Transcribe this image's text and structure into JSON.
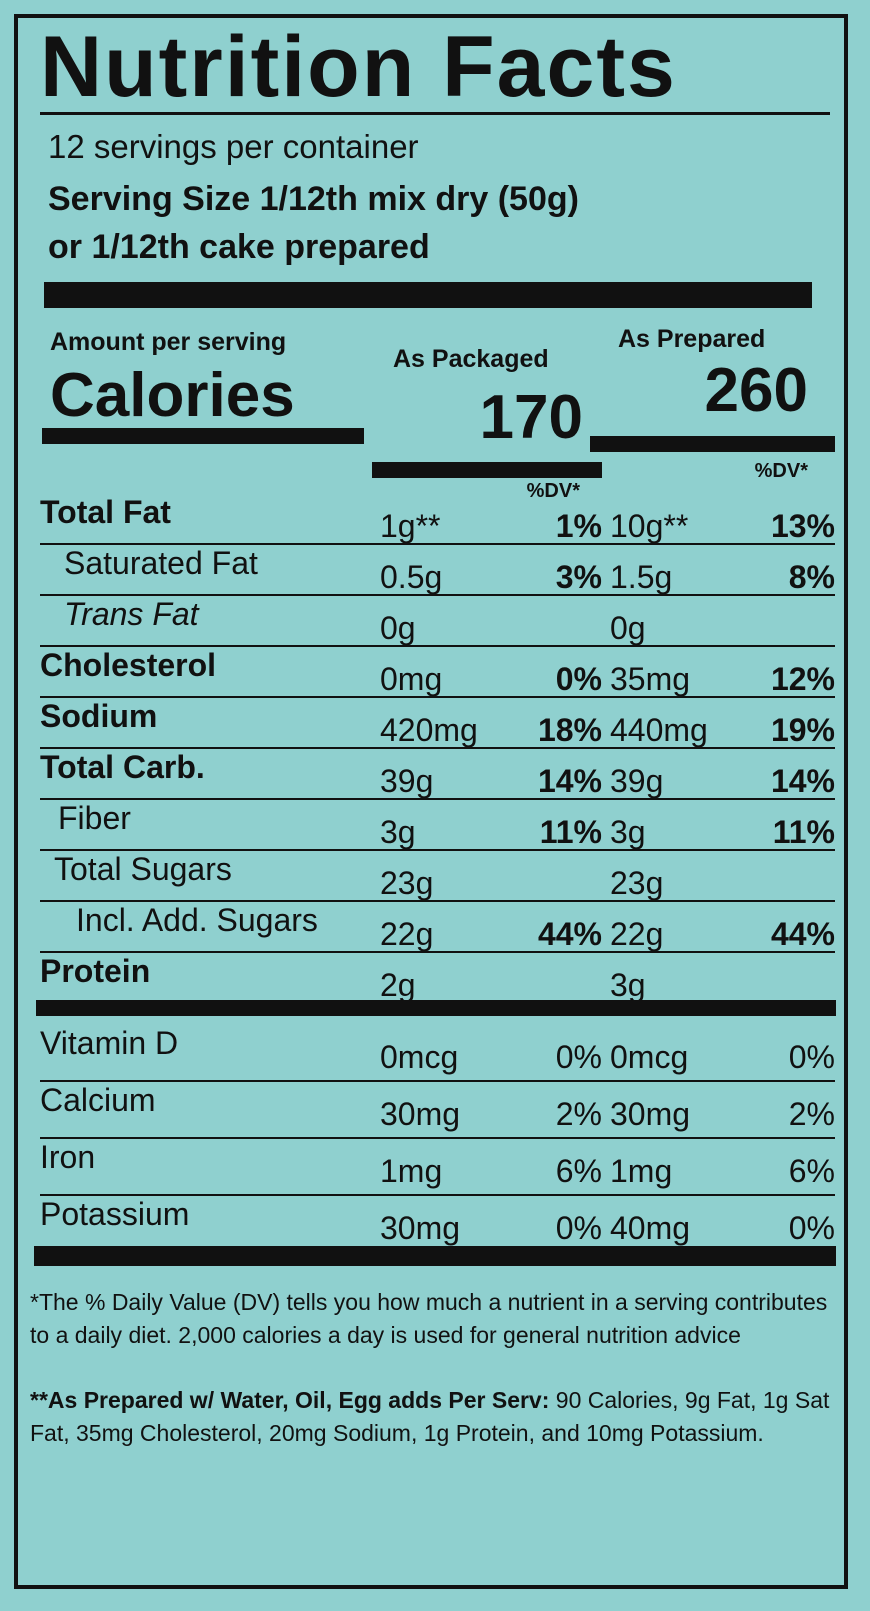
{
  "title": "Nutrition Facts",
  "servings": "12 servings per container",
  "serving_size": [
    "Serving Size 1/12th mix dry (50g)",
    "or 1/12th cake prepared"
  ],
  "amount_label": "Amount per serving",
  "calories_label": "Calories",
  "columns": [
    {
      "label": "As Packaged",
      "calories": "170",
      "dv_label": "%DV*"
    },
    {
      "label": "As Prepared",
      "calories": "260",
      "dv_label": "%DV*"
    }
  ],
  "nutrients": [
    {
      "name": "Total Fat",
      "packaged": {
        "amount": "1g**",
        "dv": "1%"
      },
      "prepared": {
        "amount": "10g**",
        "dv": "13%"
      }
    },
    {
      "name": "Saturated Fat",
      "packaged": {
        "amount": "0.5g",
        "dv": "3%"
      },
      "prepared": {
        "amount": "1.5g",
        "dv": "8%"
      }
    },
    {
      "name": "Trans Fat",
      "packaged": {
        "amount": "0g"
      },
      "prepared": {
        "amount": "0g"
      }
    },
    {
      "name": "Cholesterol",
      "packaged": {
        "amount": "0mg",
        "dv": "0%"
      },
      "prepared": {
        "amount": "35mg",
        "dv": "12%"
      }
    },
    {
      "name": "Sodium",
      "packaged": {
        "amount": "420mg",
        "dv": "18%"
      },
      "prepared": {
        "amount": "440mg",
        "dv": "19%"
      }
    },
    {
      "name": "Total Carb.",
      "packaged": {
        "amount": "39g",
        "dv": "14%"
      },
      "prepared": {
        "amount": "39g",
        "dv": "14%"
      }
    },
    {
      "name": "Fiber",
      "packaged": {
        "amount": "3g",
        "dv": "11%"
      },
      "prepared": {
        "amount": "3g",
        "dv": "11%"
      }
    },
    {
      "name": "Total Sugars",
      "packaged": {
        "amount": "23g"
      },
      "prepared": {
        "amount": "23g"
      }
    },
    {
      "name": "Incl. Add. Sugars",
      "packaged": {
        "amount": "22g",
        "dv": "44%"
      },
      "prepared": {
        "amount": "22g",
        "dv": "44%"
      }
    },
    {
      "name": "Protein",
      "packaged": {
        "amount": "2g"
      },
      "prepared": {
        "amount": "3g"
      }
    }
  ],
  "vitamins": [
    {
      "name": "Vitamin D",
      "packaged": {
        "amount": "0mcg",
        "dv": "0%"
      },
      "prepared": {
        "amount": "0mcg",
        "dv": "0%"
      }
    },
    {
      "name": "Calcium",
      "packaged": {
        "amount": "30mg",
        "dv": "2%"
      },
      "prepared": {
        "amount": "30mg",
        "dv": "2%"
      }
    },
    {
      "name": "Iron",
      "packaged": {
        "amount": "1mg",
        "dv": "6%"
      },
      "prepared": {
        "amount": "1mg",
        "dv": "6%"
      }
    },
    {
      "name": "Potassium",
      "packaged": {
        "amount": "30mg",
        "dv": "0%"
      },
      "prepared": {
        "amount": "40mg",
        "dv": "0%"
      }
    }
  ],
  "footnote": "*The % Daily Value (DV) tells you how much a nutrient in a serving contributes to a daily diet. 2,000 calories a day is used for general nutrition advice",
  "prepared_note": {
    "lead": "**As Prepared w/ Water, Oil, Egg adds Per Serv:",
    "text": "90 Calories, 9g Fat, 1g Sat Fat, 35mg Cholesterol, 20mg Sodium, 1g Protein, and 10mg Potassium."
  }
}
